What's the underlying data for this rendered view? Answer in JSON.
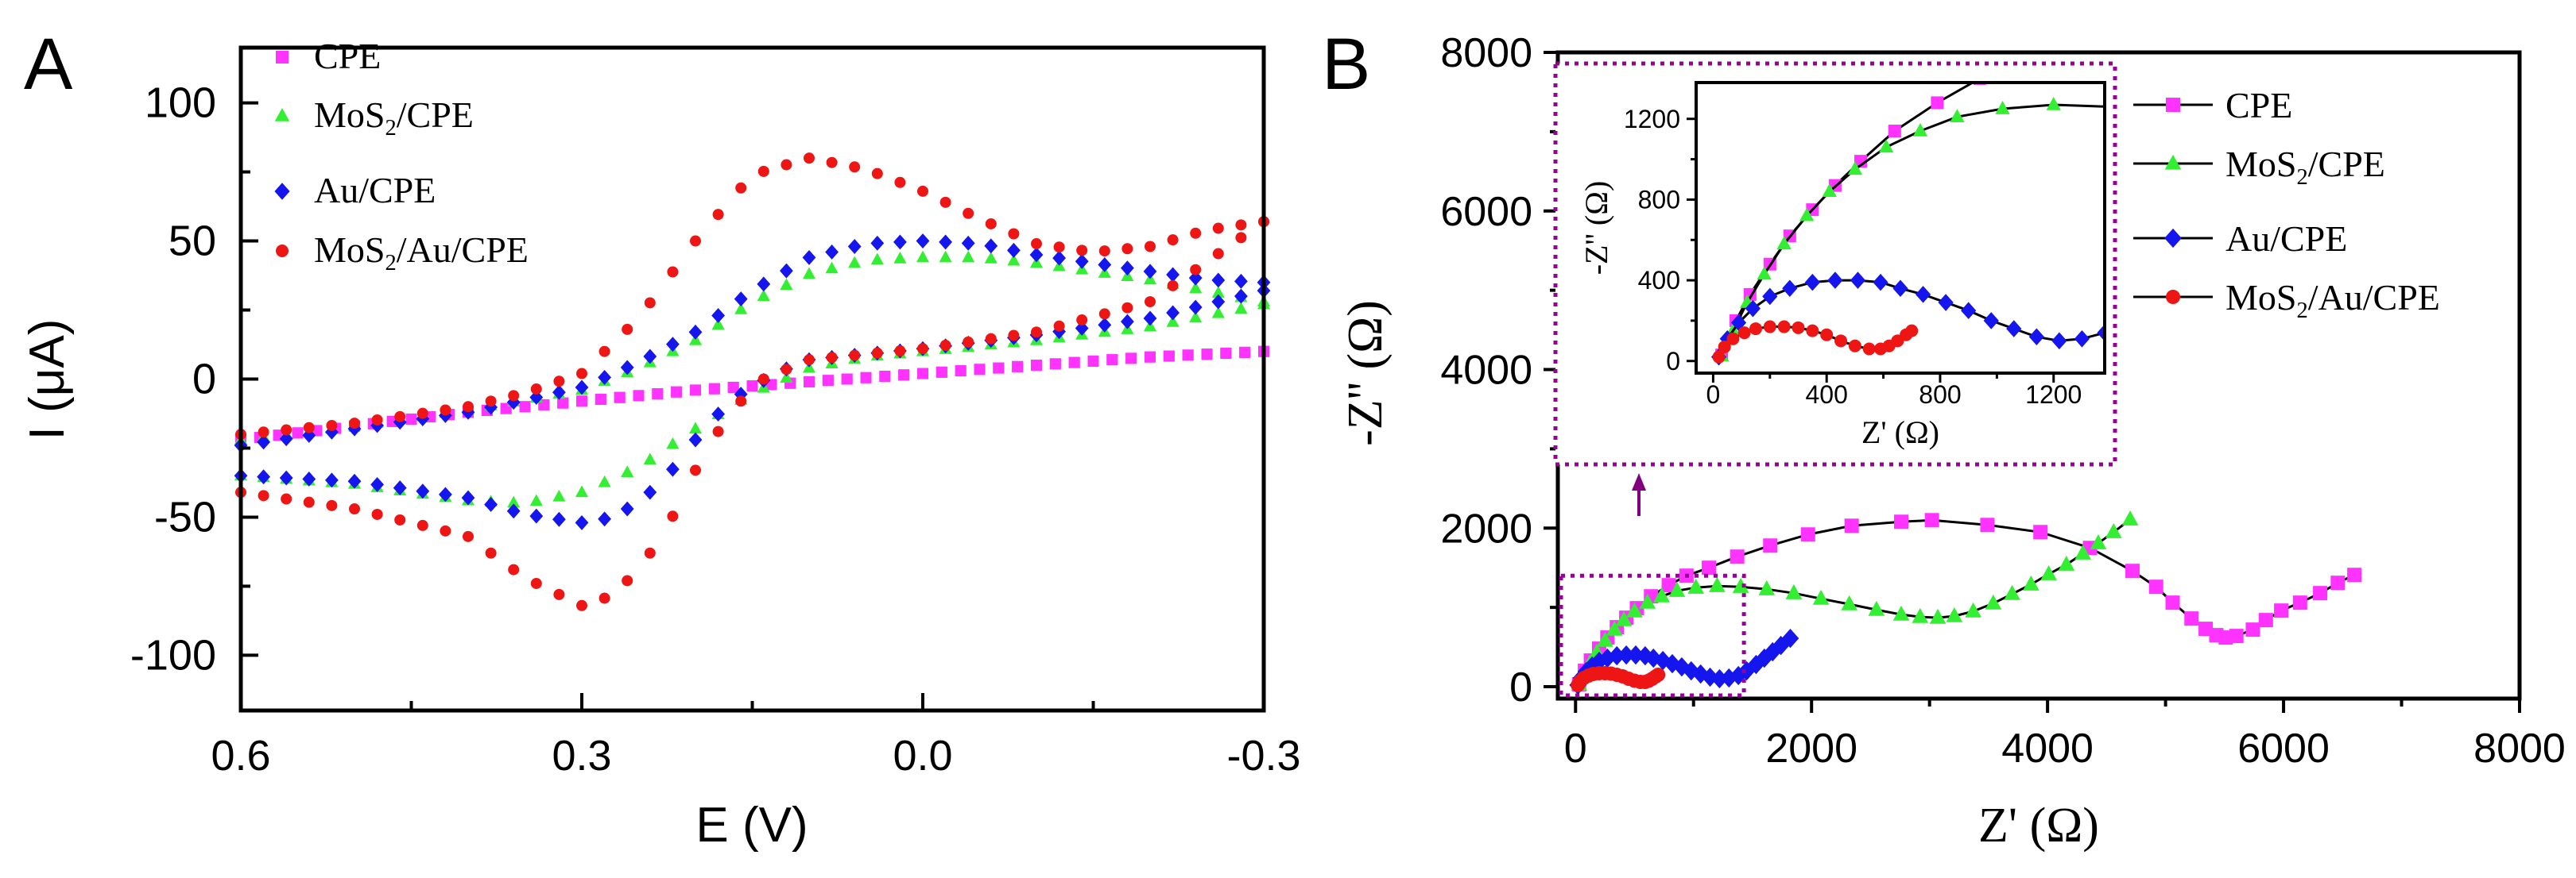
{
  "chart_data": [
    {
      "panel_label": "A",
      "type": "scatter",
      "title": "",
      "xlabel": "E (V)",
      "ylabel": "I (μA)",
      "xlim": [
        0.6,
        -0.3
      ],
      "ylim": [
        -120,
        120
      ],
      "x_tick_labels": [
        "0.6",
        "0.3",
        "0.0",
        "-0.3"
      ],
      "x_ticks": [
        0.6,
        0.3,
        0.0,
        -0.3
      ],
      "y_tick_labels": [
        "100",
        "50",
        "0",
        "-50",
        "-100"
      ],
      "y_ticks": [
        100,
        50,
        0,
        -50,
        -100
      ],
      "legend": {
        "placement": "top-left",
        "entries": [
          {
            "prefix": "CPE",
            "sub": "",
            "suffix": ""
          },
          {
            "prefix": "MoS",
            "sub": "2",
            "suffix": "/CPE"
          },
          {
            "prefix": "Au/CPE",
            "sub": "",
            "suffix": ""
          },
          {
            "prefix": "MoS",
            "sub": "2",
            "suffix": "/Au/CPE"
          }
        ]
      },
      "series": [
        {
          "name": "CPE",
          "color": "#ff33ff",
          "marker": "square",
          "reduction": [
            [
              0.6,
              -22
            ],
            [
              0.5,
              -17
            ],
            [
              0.4,
              -12
            ],
            [
              0.3,
              -8
            ],
            [
              0.2,
              -4
            ],
            [
              0.1,
              -1
            ],
            [
              0.0,
              2
            ],
            [
              -0.1,
              5
            ],
            [
              -0.2,
              8
            ],
            [
              -0.3,
              10
            ]
          ],
          "oxidation": [
            [
              -0.3,
              10
            ],
            [
              -0.2,
              8
            ],
            [
              -0.1,
              5
            ],
            [
              0.0,
              2
            ],
            [
              0.1,
              -1
            ],
            [
              0.2,
              -4
            ],
            [
              0.3,
              -8
            ],
            [
              0.4,
              -12
            ],
            [
              0.5,
              -17
            ],
            [
              0.6,
              -22
            ]
          ],
          "points_per_branch": 55
        },
        {
          "name": "MoS2/CPE",
          "color": "#33ee33",
          "marker": "triangle",
          "reduction": [
            [
              0.6,
              -35
            ],
            [
              0.5,
              -38
            ],
            [
              0.4,
              -44
            ],
            [
              0.35,
              -45
            ],
            [
              0.3,
              -41
            ],
            [
              0.25,
              -32
            ],
            [
              0.2,
              -18
            ],
            [
              0.15,
              -5
            ],
            [
              0.1,
              4
            ],
            [
              0.05,
              8
            ],
            [
              0.0,
              10
            ],
            [
              -0.1,
              14
            ],
            [
              -0.2,
              19
            ],
            [
              -0.3,
              27
            ]
          ],
          "oxidation": [
            [
              -0.3,
              28
            ],
            [
              -0.2,
              36
            ],
            [
              -0.1,
              42
            ],
            [
              -0.05,
              44
            ],
            [
              0.0,
              44
            ],
            [
              0.05,
              43
            ],
            [
              0.1,
              38
            ],
            [
              0.15,
              28
            ],
            [
              0.2,
              14
            ],
            [
              0.25,
              4
            ],
            [
              0.3,
              -4
            ],
            [
              0.4,
              -11
            ],
            [
              0.5,
              -17
            ],
            [
              0.6,
              -22
            ]
          ],
          "points_per_branch": 46
        },
        {
          "name": "Au/CPE",
          "color": "#1515ee",
          "marker": "diamond",
          "reduction": [
            [
              0.6,
              -35
            ],
            [
              0.5,
              -37
            ],
            [
              0.4,
              -43
            ],
            [
              0.35,
              -49
            ],
            [
              0.3,
              -52
            ],
            [
              0.27,
              -50
            ],
            [
              0.23,
              -38
            ],
            [
              0.2,
              -22
            ],
            [
              0.17,
              -8
            ],
            [
              0.13,
              2
            ],
            [
              0.1,
              7
            ],
            [
              0.0,
              11
            ],
            [
              -0.1,
              16
            ],
            [
              -0.2,
              22
            ],
            [
              -0.3,
              32
            ]
          ],
          "oxidation": [
            [
              -0.3,
              35
            ],
            [
              -0.25,
              36
            ],
            [
              -0.2,
              39
            ],
            [
              -0.1,
              45
            ],
            [
              -0.05,
              49
            ],
            [
              0.0,
              50
            ],
            [
              0.05,
              49
            ],
            [
              0.1,
              44
            ],
            [
              0.15,
              32
            ],
            [
              0.2,
              17
            ],
            [
              0.25,
              6
            ],
            [
              0.3,
              -3
            ],
            [
              0.4,
              -12
            ],
            [
              0.5,
              -18
            ],
            [
              0.6,
              -24
            ]
          ],
          "points_per_branch": 46
        },
        {
          "name": "MoS2/Au/CPE",
          "color": "#ee1515",
          "marker": "circle",
          "reduction": [
            [
              0.6,
              -41
            ],
            [
              0.5,
              -47
            ],
            [
              0.4,
              -57
            ],
            [
              0.35,
              -72
            ],
            [
              0.3,
              -82
            ],
            [
              0.27,
              -78
            ],
            [
              0.23,
              -58
            ],
            [
              0.2,
              -33
            ],
            [
              0.17,
              -12
            ],
            [
              0.14,
              0
            ],
            [
              0.1,
              7
            ],
            [
              0.0,
              11
            ],
            [
              -0.1,
              17
            ],
            [
              -0.2,
              28
            ],
            [
              -0.3,
              57
            ]
          ],
          "oxidation": [
            [
              -0.3,
              57
            ],
            [
              -0.25,
              54
            ],
            [
              -0.2,
              48
            ],
            [
              -0.15,
              46
            ],
            [
              -0.1,
              49
            ],
            [
              -0.05,
              58
            ],
            [
              0.0,
              68
            ],
            [
              0.05,
              76
            ],
            [
              0.1,
              80
            ],
            [
              0.15,
              74
            ],
            [
              0.2,
              50
            ],
            [
              0.25,
              22
            ],
            [
              0.3,
              2
            ],
            [
              0.35,
              -5
            ],
            [
              0.4,
              -10
            ],
            [
              0.5,
              -16
            ],
            [
              0.6,
              -20
            ]
          ],
          "points_per_branch": 46
        }
      ]
    },
    {
      "panel_label": "B",
      "type": "scatter",
      "title": "",
      "xlabel": "Z' (Ω)",
      "ylabel": "-Z'' (Ω)",
      "xlim": [
        -150,
        8000
      ],
      "ylim": [
        -150,
        8000
      ],
      "x_tick_labels": [
        "0",
        "2000",
        "4000",
        "6000",
        "8000"
      ],
      "x_ticks": [
        0,
        2000,
        4000,
        6000,
        8000
      ],
      "y_tick_labels": [
        "0",
        "2000",
        "4000",
        "6000",
        "8000"
      ],
      "y_ticks": [
        0,
        2000,
        4000,
        6000,
        8000
      ],
      "legend": {
        "placement": "top-right",
        "entries": [
          {
            "prefix": "CPE",
            "sub": "",
            "suffix": ""
          },
          {
            "prefix": "MoS",
            "sub": "2",
            "suffix": "/CPE"
          },
          {
            "prefix": "Au/CPE",
            "sub": "",
            "suffix": ""
          },
          {
            "prefix": "MoS",
            "sub": "2",
            "suffix": "/Au/CPE"
          }
        ]
      },
      "zoom_region": {
        "x": [
          -150,
          1400
        ],
        "y": [
          -150,
          1400
        ]
      },
      "series": [
        {
          "name": "CPE",
          "color": "#ff33ff",
          "marker": "square",
          "points": [
            [
              30,
              30
            ],
            [
              80,
              200
            ],
            [
              130,
              330
            ],
            [
              200,
              480
            ],
            [
              270,
              620
            ],
            [
              350,
              750
            ],
            [
              430,
              870
            ],
            [
              520,
              990
            ],
            [
              640,
              1140
            ],
            [
              790,
              1280
            ],
            [
              940,
              1400
            ],
            [
              1130,
              1500
            ],
            [
              1370,
              1640
            ],
            [
              1650,
              1780
            ],
            [
              1970,
              1920
            ],
            [
              2340,
              2030
            ],
            [
              2760,
              2080
            ],
            [
              3020,
              2100
            ],
            [
              3490,
              2040
            ],
            [
              3940,
              1950
            ],
            [
              4360,
              1750
            ],
            [
              4720,
              1460
            ],
            [
              4920,
              1260
            ],
            [
              5060,
              1060
            ],
            [
              5220,
              860
            ],
            [
              5340,
              730
            ],
            [
              5430,
              650
            ],
            [
              5510,
              620
            ],
            [
              5600,
              640
            ],
            [
              5740,
              720
            ],
            [
              5850,
              840
            ],
            [
              5980,
              960
            ],
            [
              6140,
              1060
            ],
            [
              6310,
              1180
            ],
            [
              6460,
              1310
            ],
            [
              6600,
              1410
            ]
          ]
        },
        {
          "name": "MoS2/CPE",
          "color": "#33ee33",
          "marker": "triangle",
          "points": [
            [
              30,
              25
            ],
            [
              70,
              150
            ],
            [
              120,
              290
            ],
            [
              180,
              430
            ],
            [
              250,
              580
            ],
            [
              330,
              720
            ],
            [
              410,
              840
            ],
            [
              500,
              950
            ],
            [
              610,
              1060
            ],
            [
              730,
              1140
            ],
            [
              860,
              1210
            ],
            [
              1020,
              1250
            ],
            [
              1200,
              1270
            ],
            [
              1400,
              1260
            ],
            [
              1620,
              1230
            ],
            [
              1850,
              1180
            ],
            [
              2080,
              1110
            ],
            [
              2320,
              1040
            ],
            [
              2550,
              970
            ],
            [
              2760,
              910
            ],
            [
              2920,
              880
            ],
            [
              3070,
              870
            ],
            [
              3210,
              890
            ],
            [
              3370,
              950
            ],
            [
              3540,
              1050
            ],
            [
              3700,
              1170
            ],
            [
              3860,
              1290
            ],
            [
              4010,
              1420
            ],
            [
              4160,
              1540
            ],
            [
              4300,
              1680
            ],
            [
              4430,
              1810
            ],
            [
              4560,
              1950
            ],
            [
              4700,
              2110
            ]
          ]
        },
        {
          "name": "Au/CPE",
          "color": "#1515ee",
          "marker": "diamond",
          "points": [
            [
              20,
              20
            ],
            [
              50,
              110
            ],
            [
              90,
              190
            ],
            [
              140,
              260
            ],
            [
              200,
              320
            ],
            [
              270,
              360
            ],
            [
              350,
              390
            ],
            [
              430,
              400
            ],
            [
              510,
              400
            ],
            [
              590,
              390
            ],
            [
              660,
              360
            ],
            [
              740,
              330
            ],
            [
              820,
              290
            ],
            [
              900,
              250
            ],
            [
              980,
              200
            ],
            [
              1060,
              160
            ],
            [
              1140,
              120
            ],
            [
              1220,
              100
            ],
            [
              1300,
              110
            ],
            [
              1380,
              140
            ],
            [
              1450,
              200
            ],
            [
              1530,
              280
            ],
            [
              1600,
              360
            ],
            [
              1670,
              440
            ],
            [
              1740,
              520
            ],
            [
              1820,
              610
            ]
          ]
        },
        {
          "name": "MoS2/Au/CPE",
          "color": "#ee1515",
          "marker": "circle",
          "points": [
            [
              20,
              20
            ],
            [
              40,
              70
            ],
            [
              70,
              110
            ],
            [
              110,
              140
            ],
            [
              150,
              160
            ],
            [
              200,
              170
            ],
            [
              250,
              170
            ],
            [
              300,
              165
            ],
            [
              350,
              150
            ],
            [
              400,
              130
            ],
            [
              450,
              100
            ],
            [
              500,
              75
            ],
            [
              550,
              60
            ],
            [
              590,
              60
            ],
            [
              620,
              75
            ],
            [
              650,
              100
            ],
            [
              680,
              130
            ],
            [
              700,
              150
            ]
          ]
        }
      ],
      "inset": {
        "xlabel": "Z' (Ω)",
        "ylabel": "-Z'' (Ω)",
        "xlim": [
          -60,
          1380
        ],
        "ylim": [
          -60,
          1380
        ],
        "x_ticks": [
          0,
          400,
          800,
          1200
        ],
        "x_tick_labels": [
          "0",
          "400",
          "800",
          "1200"
        ],
        "y_ticks": [
          0,
          400,
          800,
          1200
        ],
        "y_tick_labels": [
          "0",
          "400",
          "800",
          "1200"
        ]
      }
    }
  ]
}
